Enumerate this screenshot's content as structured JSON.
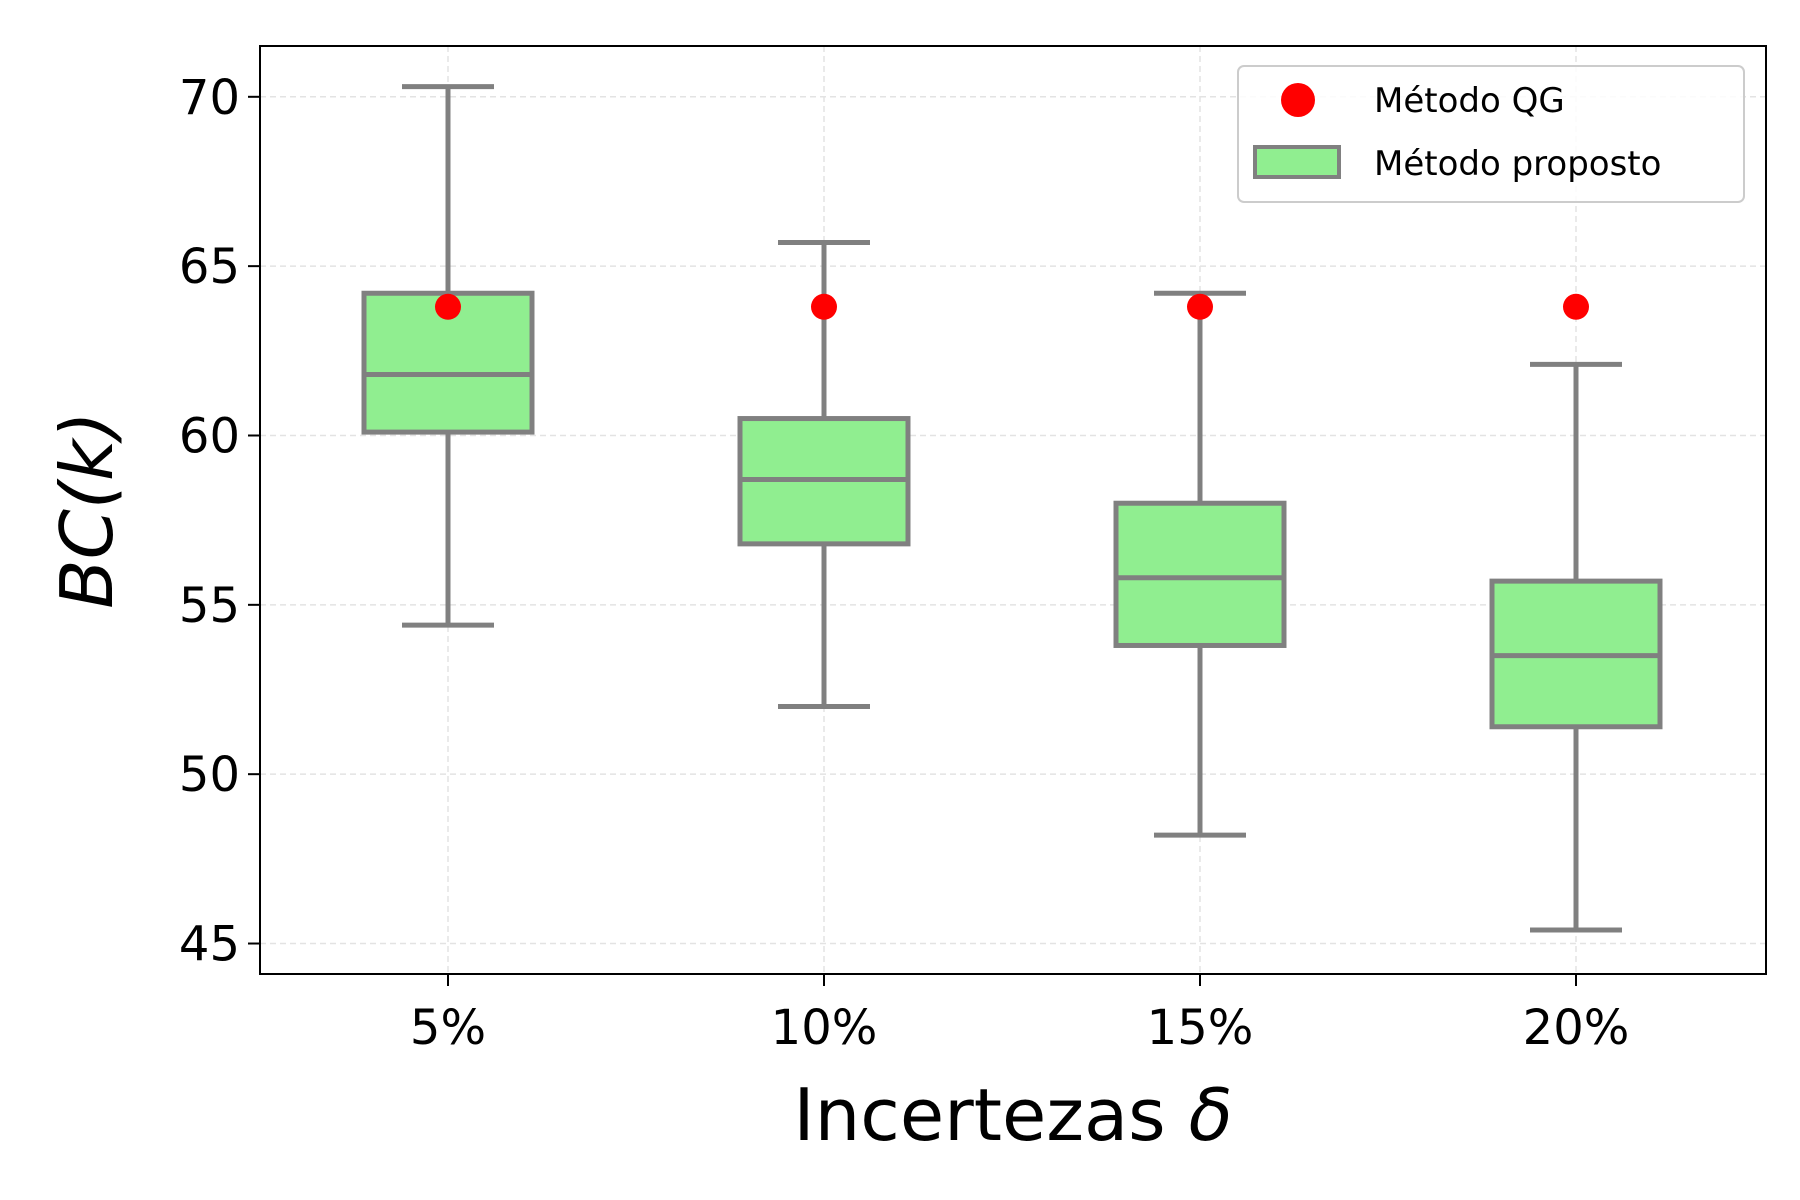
{
  "chart_data": {
    "type": "box",
    "categories": [
      "5%",
      "10%",
      "15%",
      "20%"
    ],
    "xlabel": "Incertezas",
    "xlabel_symbol": "δ",
    "ylabel": "BC(k)",
    "ylim": [
      44.1,
      71.5
    ],
    "yticks": [
      45,
      50,
      55,
      60,
      65,
      70
    ],
    "grid": true,
    "legend_position": "top-right",
    "series": [
      {
        "name": "Método proposto",
        "kind": "box",
        "color": "#90ee90",
        "edge_color": "#808080",
        "boxes": [
          {
            "whisker_low": 54.4,
            "q1": 60.1,
            "median": 61.8,
            "q3": 64.2,
            "whisker_high": 70.3
          },
          {
            "whisker_low": 52.0,
            "q1": 56.8,
            "median": 58.7,
            "q3": 60.5,
            "whisker_high": 65.7
          },
          {
            "whisker_low": 48.2,
            "q1": 53.8,
            "median": 55.8,
            "q3": 58.0,
            "whisker_high": 64.2
          },
          {
            "whisker_low": 45.4,
            "q1": 51.4,
            "median": 53.5,
            "q3": 55.7,
            "whisker_high": 62.1
          }
        ]
      },
      {
        "name": "Método QG",
        "kind": "point",
        "color": "#ff0000",
        "values": [
          63.8,
          63.8,
          63.8,
          63.8
        ]
      }
    ]
  }
}
